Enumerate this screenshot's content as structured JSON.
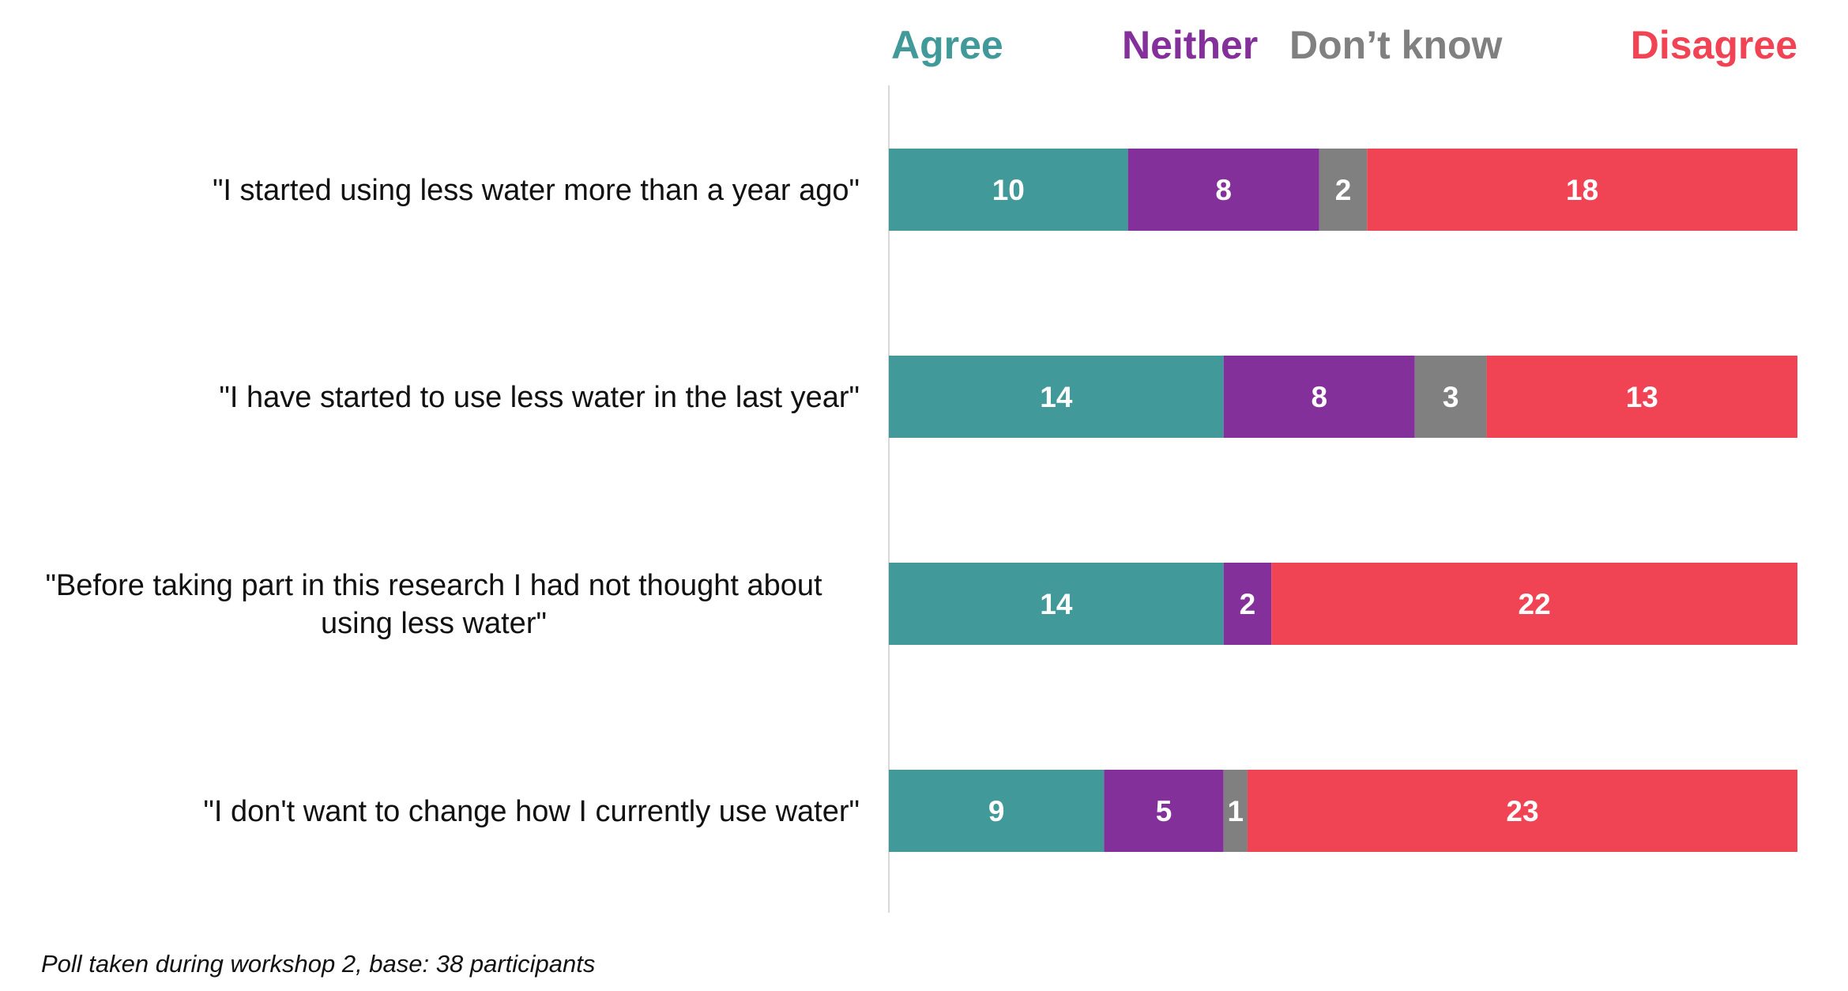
{
  "chart_data": {
    "type": "bar",
    "orientation": "horizontal",
    "stacked": true,
    "categories": [
      [
        "\"I  started using less water more than a year ago\""
      ],
      [
        "\"I have started to use less water in the last year\""
      ],
      [
        "\"Before taking part in this research I had not thought about",
        "using less water\""
      ],
      [
        "\"I don't want to change how I currently use water\""
      ]
    ],
    "series": [
      {
        "name": "Agree",
        "color": "#41999A",
        "values": [
          10,
          14,
          14,
          9
        ]
      },
      {
        "name": "Neither",
        "color": "#84309A",
        "values": [
          8,
          8,
          2,
          5
        ]
      },
      {
        "name": "Don’t know",
        "color": "#808080",
        "values": [
          2,
          3,
          0,
          1
        ]
      },
      {
        "name": "Disagree",
        "color": "#F04455",
        "values": [
          18,
          13,
          22,
          23
        ]
      }
    ],
    "xlim": [
      0,
      38
    ],
    "legend_position": "top",
    "grid": false,
    "footnote": "Poll taken during workshop 2, base: 38 participants"
  }
}
